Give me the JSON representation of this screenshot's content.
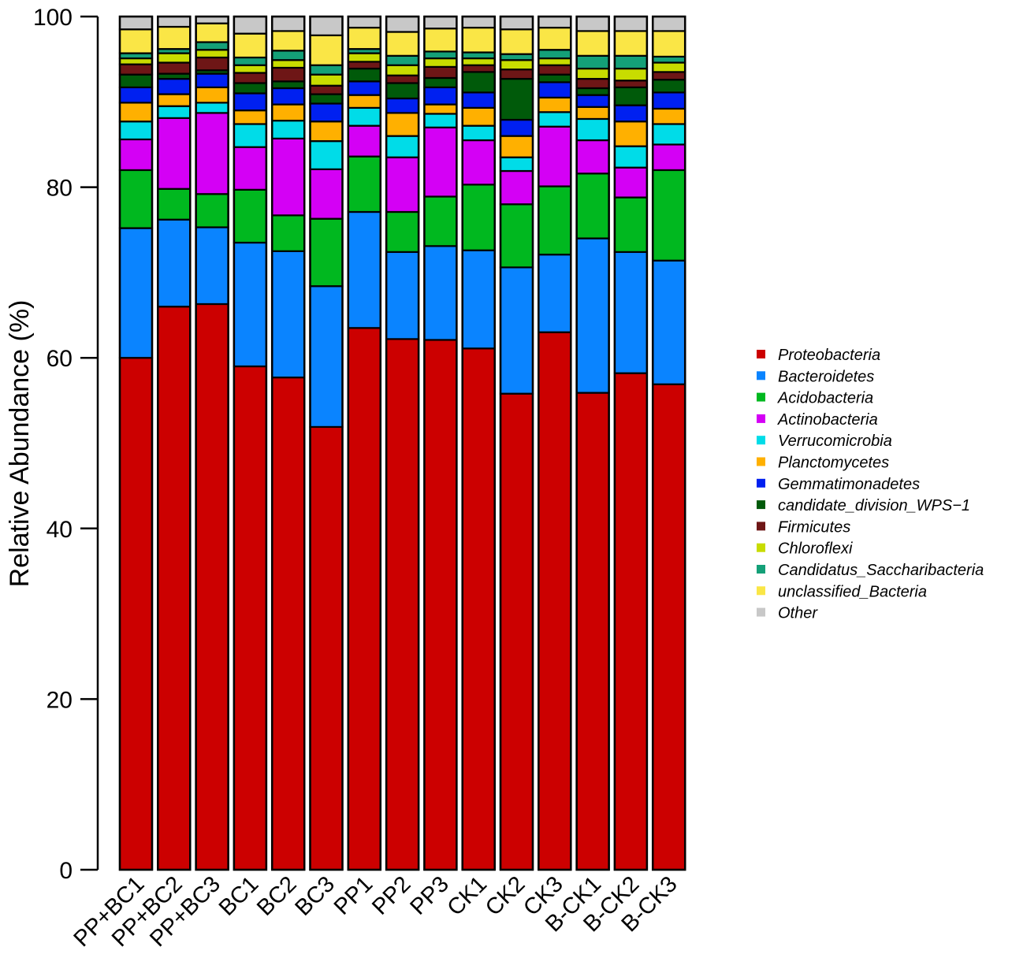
{
  "chart_data": {
    "type": "bar",
    "stacked": true,
    "title": "",
    "xlabel": "",
    "ylabel": "Relative Abundance (%)",
    "ylim": [
      0,
      100
    ],
    "yticks": [
      0,
      20,
      40,
      60,
      80,
      100
    ],
    "grid": false,
    "legend_position": "right",
    "categories": [
      "PP+BC1",
      "PP+BC2",
      "PP+BC3",
      "BC1",
      "BC2",
      "BC3",
      "PP1",
      "PP2",
      "PP3",
      "CK1",
      "CK2",
      "CK3",
      "B-CK1",
      "B-CK2",
      "B-CK3"
    ],
    "series": [
      {
        "name": "Proteobacteria",
        "color": "#cc0000",
        "values": [
          60.0,
          66.0,
          66.3,
          59.0,
          57.7,
          51.9,
          63.5,
          62.2,
          62.1,
          61.1,
          55.8,
          63.0,
          55.9,
          58.2,
          56.9
        ]
      },
      {
        "name": "Bacteroidetes",
        "color": "#0a84ff",
        "values": [
          15.2,
          10.2,
          9.0,
          14.5,
          14.8,
          16.5,
          13.6,
          10.2,
          11.0,
          11.5,
          14.8,
          9.1,
          18.1,
          14.2,
          14.5
        ]
      },
      {
        "name": "Acidobacteria",
        "color": "#00b81f",
        "values": [
          6.8,
          3.6,
          3.9,
          6.2,
          4.2,
          7.9,
          6.5,
          4.7,
          5.8,
          7.7,
          7.4,
          8.0,
          7.6,
          6.4,
          10.6
        ]
      },
      {
        "name": "Actinobacteria",
        "color": "#d400f5",
        "values": [
          3.6,
          8.3,
          9.5,
          5.0,
          9.0,
          5.8,
          3.6,
          6.4,
          8.1,
          5.2,
          3.9,
          7.0,
          3.9,
          3.5,
          3.0
        ]
      },
      {
        "name": "Verrucomicrobia",
        "color": "#00dce8",
        "values": [
          2.1,
          1.4,
          1.2,
          2.7,
          2.1,
          3.3,
          2.1,
          2.5,
          1.6,
          1.7,
          1.6,
          1.7,
          2.5,
          2.5,
          2.4
        ]
      },
      {
        "name": "Planctomycetes",
        "color": "#ffb000",
        "values": [
          2.2,
          1.4,
          1.8,
          1.6,
          1.9,
          2.3,
          1.5,
          2.7,
          1.1,
          2.1,
          2.5,
          1.7,
          1.4,
          2.9,
          1.8
        ]
      },
      {
        "name": "Gemmatimonadetes",
        "color": "#0020f0",
        "values": [
          1.8,
          1.8,
          1.6,
          2.0,
          1.9,
          2.1,
          1.6,
          1.7,
          2.0,
          1.8,
          1.9,
          1.8,
          1.4,
          1.9,
          1.9
        ]
      },
      {
        "name": "candidate_division_WPS−1",
        "color": "#005a0a",
        "values": [
          1.5,
          0.6,
          0.4,
          1.2,
          0.8,
          1.1,
          1.5,
          1.8,
          1.1,
          2.4,
          4.8,
          0.9,
          0.8,
          2.1,
          1.5
        ]
      },
      {
        "name": "Firmicutes",
        "color": "#6e1616",
        "values": [
          1.2,
          1.3,
          1.5,
          1.2,
          1.6,
          1.0,
          0.8,
          0.9,
          1.3,
          0.8,
          1.1,
          1.1,
          1.1,
          0.8,
          0.9
        ]
      },
      {
        "name": "Chloroflexi",
        "color": "#c8dc00",
        "values": [
          0.7,
          1.1,
          0.9,
          0.9,
          0.9,
          1.3,
          1.0,
          1.2,
          1.0,
          0.8,
          1.1,
          0.8,
          1.2,
          1.4,
          1.1
        ]
      },
      {
        "name": "Candidatus_Saccharibacteria",
        "color": "#14a078",
        "values": [
          0.6,
          0.5,
          0.9,
          0.9,
          1.1,
          1.1,
          0.5,
          1.1,
          0.8,
          0.7,
          0.7,
          1.0,
          1.5,
          1.5,
          0.7
        ]
      },
      {
        "name": "unclassified_Bacteria",
        "color": "#fae646",
        "values": [
          2.8,
          2.6,
          2.2,
          2.8,
          2.3,
          3.5,
          2.5,
          2.8,
          2.7,
          2.9,
          2.9,
          2.6,
          2.9,
          2.9,
          3.0
        ]
      },
      {
        "name": "Other",
        "color": "#c8c8c8",
        "values": [
          1.5,
          1.2,
          0.8,
          2.0,
          1.7,
          2.2,
          1.3,
          1.8,
          1.4,
          1.3,
          1.5,
          1.3,
          1.7,
          1.7,
          1.7
        ]
      }
    ]
  }
}
